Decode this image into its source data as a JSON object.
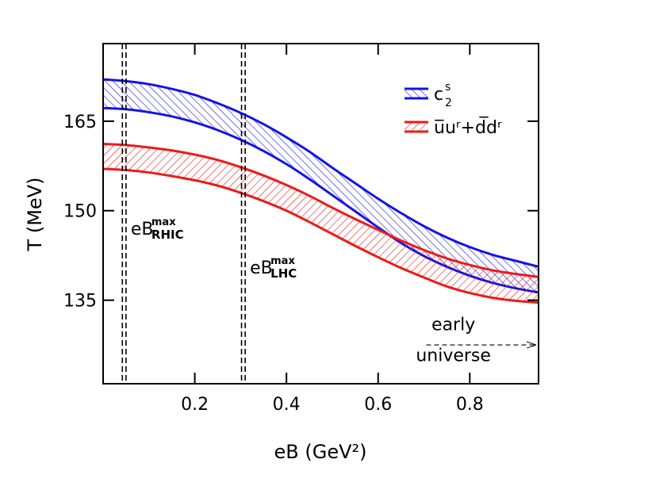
{
  "chart_data": {
    "type": "area",
    "title": "",
    "xlabel": "eB  (GeV²)",
    "ylabel": "T  (MeV)",
    "xlim": [
      0.0,
      0.95
    ],
    "ylim": [
      121.0,
      178.0
    ],
    "x_ticks": [
      0.2,
      0.4,
      0.6,
      0.8
    ],
    "x_tick_labels": [
      "0.2",
      "0.4",
      "0.6",
      "0.8"
    ],
    "y_ticks": [
      135,
      150,
      165
    ],
    "y_tick_labels": [
      "135",
      "150",
      "165"
    ],
    "grid": false,
    "legend_position": "top-right",
    "series": [
      {
        "name": "c2s",
        "legend_label": "c",
        "legend_sup": "s",
        "legend_sub": "2",
        "color": "#1414e6",
        "x": [
          0.0,
          0.05,
          0.1,
          0.15,
          0.2,
          0.25,
          0.3,
          0.35,
          0.4,
          0.45,
          0.5,
          0.55,
          0.6,
          0.65,
          0.7,
          0.75,
          0.8,
          0.85,
          0.9,
          0.95
        ],
        "upper": [
          172.0,
          171.7,
          171.2,
          170.4,
          169.4,
          168.0,
          166.4,
          164.5,
          162.3,
          159.9,
          157.2,
          154.6,
          152.0,
          149.6,
          147.4,
          145.5,
          143.9,
          142.6,
          141.6,
          140.6
        ],
        "lower": [
          167.2,
          167.0,
          166.5,
          165.8,
          164.8,
          163.5,
          161.9,
          160.0,
          157.8,
          155.3,
          152.6,
          149.9,
          147.2,
          144.6,
          142.4,
          140.6,
          139.1,
          137.9,
          137.0,
          136.3
        ]
      },
      {
        "name": "uu_dd",
        "legend_label": "u̅uʳ+d̅dʳ",
        "color": "#ee1a1a",
        "x": [
          0.0,
          0.05,
          0.1,
          0.15,
          0.2,
          0.25,
          0.3,
          0.35,
          0.4,
          0.45,
          0.5,
          0.55,
          0.6,
          0.65,
          0.7,
          0.75,
          0.8,
          0.85,
          0.9,
          0.95
        ],
        "upper": [
          161.2,
          161.0,
          160.6,
          160.1,
          159.4,
          158.5,
          157.3,
          155.9,
          154.3,
          152.5,
          150.5,
          148.6,
          146.8,
          145.0,
          143.4,
          142.0,
          140.9,
          140.0,
          139.4,
          138.9
        ],
        "lower": [
          157.0,
          156.8,
          156.4,
          155.8,
          155.1,
          154.2,
          153.0,
          151.6,
          150.0,
          148.1,
          146.1,
          144.1,
          142.2,
          140.4,
          138.8,
          137.3,
          136.2,
          135.4,
          134.9,
          134.6
        ]
      }
    ],
    "vertical_markers": [
      {
        "name": "eB max RHIC",
        "label": "eB",
        "sup": "max",
        "sub": "RHIC",
        "x": [
          0.042,
          0.05
        ],
        "label_y": 146
      },
      {
        "name": "eB max LHC",
        "label": "eB",
        "sup": "max",
        "sub": "LHC",
        "x": [
          0.302,
          0.31
        ],
        "label_y": 139.5
      }
    ],
    "annotations": [
      {
        "text": "early",
        "x": 0.74,
        "y": 130.0
      },
      {
        "text": "universe",
        "x": 0.74,
        "y": 124.8
      }
    ],
    "arrow": {
      "x_start": 0.705,
      "x_end": 0.945,
      "y": 127.5
    }
  }
}
